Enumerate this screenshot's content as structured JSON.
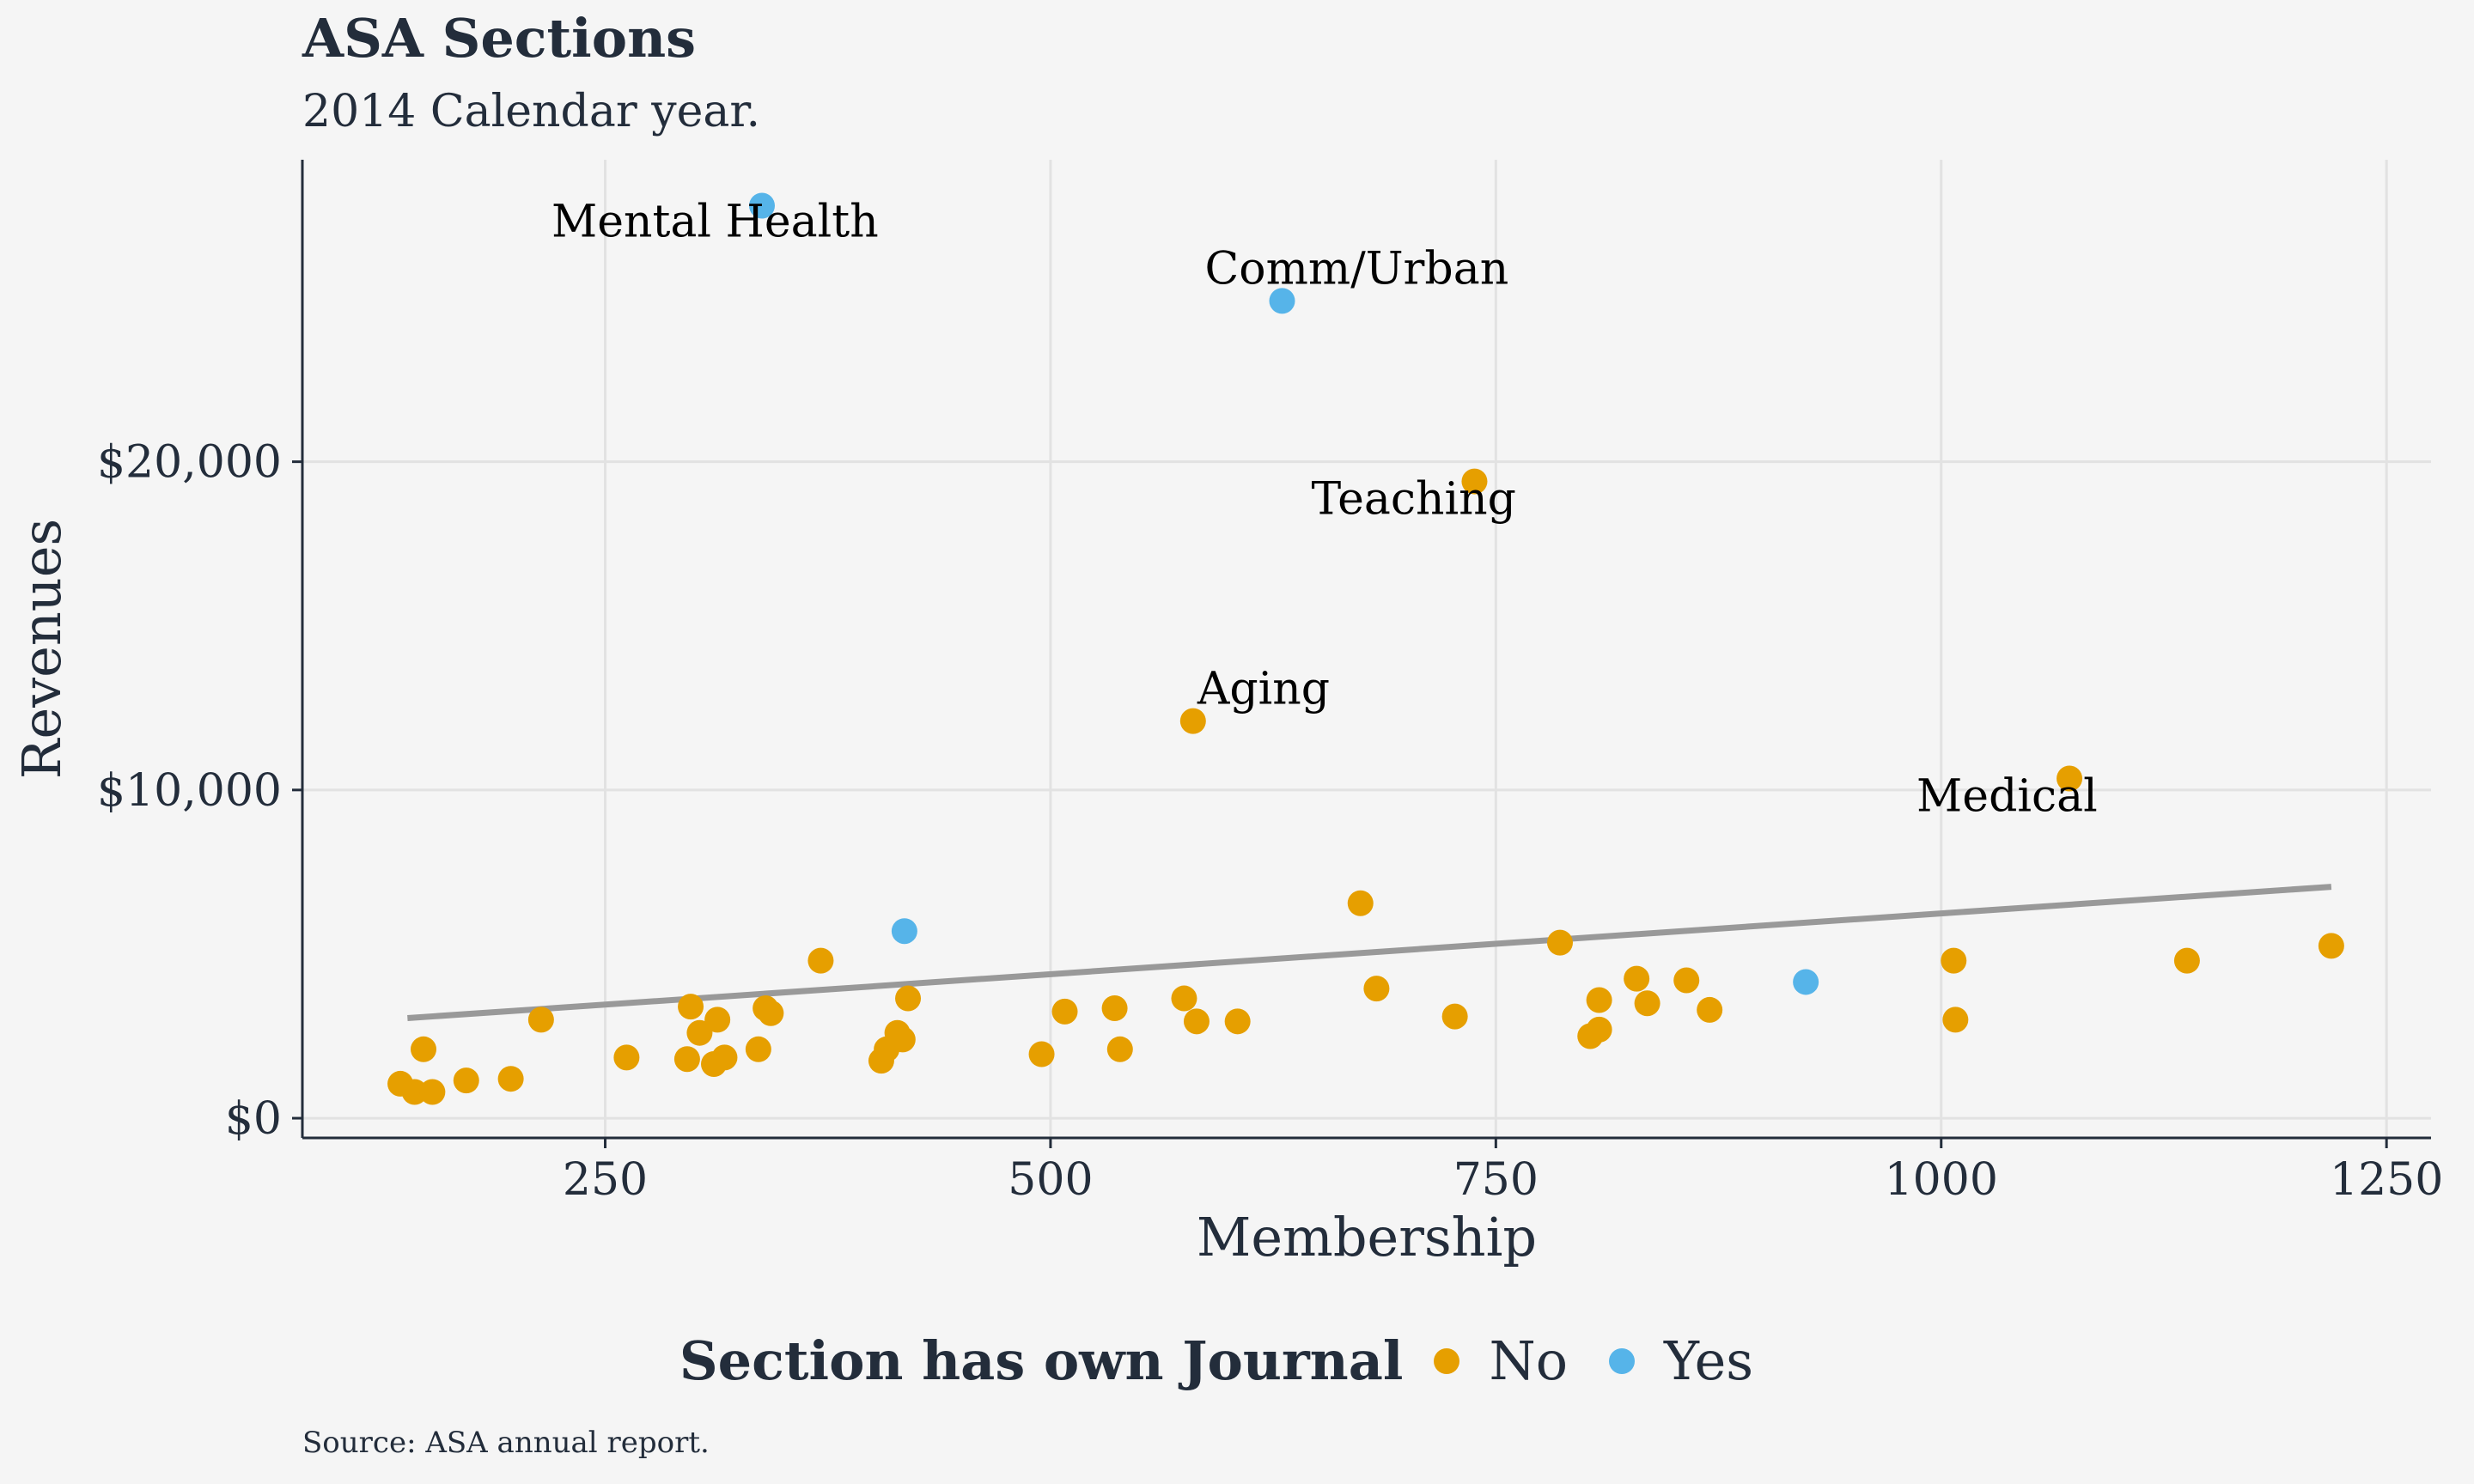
{
  "chart_data": {
    "type": "scatter",
    "title": "ASA Sections",
    "subtitle": "2014 Calendar year.",
    "caption": "Source: ASA annual report.",
    "xlabel": "Membership",
    "ylabel": "Revenues",
    "xlim": [
      80,
      1275
    ],
    "ylim": [
      -600,
      29200
    ],
    "x_ticks": [
      250,
      500,
      750,
      1000,
      1250
    ],
    "x_tick_labels": [
      "250",
      "500",
      "750",
      "1000",
      "1250"
    ],
    "y_ticks": [
      0,
      10000,
      20000
    ],
    "y_tick_labels": [
      "$0",
      "$10,000",
      "$20,000"
    ],
    "grid": true,
    "legend": {
      "title": "Section has own Journal",
      "position": "bottom",
      "entries": [
        {
          "label": "No",
          "color": "#E69F00"
        },
        {
          "label": "Yes",
          "color": "#56B4E9"
        }
      ]
    },
    "trend_line": {
      "color": "#999999",
      "x": [
        139,
        1219
      ],
      "y": [
        3050,
        7050
      ]
    },
    "series": [
      {
        "name": "No",
        "color": "#E69F00",
        "points": [
          [
            135,
            1050
          ],
          [
            143,
            800
          ],
          [
            148,
            2100
          ],
          [
            153,
            800
          ],
          [
            172,
            1150
          ],
          [
            197,
            1200
          ],
          [
            214,
            3000
          ],
          [
            262,
            1850
          ],
          [
            296,
            1800
          ],
          [
            298,
            3400
          ],
          [
            303,
            2600
          ],
          [
            311,
            1650
          ],
          [
            313,
            3000
          ],
          [
            317,
            1850
          ],
          [
            336,
            2100
          ],
          [
            340,
            3350
          ],
          [
            343,
            3200
          ],
          [
            371,
            4800
          ],
          [
            405,
            1750
          ],
          [
            408,
            2100
          ],
          [
            414,
            2600
          ],
          [
            417,
            2400
          ],
          [
            420,
            3650
          ],
          [
            495,
            1950
          ],
          [
            508,
            3250
          ],
          [
            536,
            3350
          ],
          [
            539,
            2100
          ],
          [
            575,
            3650
          ],
          [
            580,
            12100
          ],
          [
            582,
            2950
          ],
          [
            605,
            2950
          ],
          [
            674,
            6550
          ],
          [
            683,
            3950
          ],
          [
            727,
            3100
          ],
          [
            738,
            19400
          ],
          [
            786,
            5350
          ],
          [
            803,
            2500
          ],
          [
            808,
            2700
          ],
          [
            808,
            3600
          ],
          [
            829,
            4250
          ],
          [
            835,
            3500
          ],
          [
            857,
            4200
          ],
          [
            870,
            3300
          ],
          [
            1007,
            4800
          ],
          [
            1008,
            3000
          ],
          [
            1072,
            10350
          ],
          [
            1138,
            4800
          ],
          [
            1219,
            5250
          ]
        ]
      },
      {
        "name": "Yes",
        "color": "#56B4E9",
        "points": [
          [
            338,
            27800
          ],
          [
            418,
            5700
          ],
          [
            630,
            24900
          ],
          [
            924,
            4150
          ]
        ]
      }
    ],
    "annotations": [
      {
        "text": "Mental Health",
        "x": 338,
        "y": 27800,
        "dx": -245,
        "dy": 36
      },
      {
        "text": "Comm/Urban",
        "x": 630,
        "y": 24900,
        "dx": -90,
        "dy": -20
      },
      {
        "text": "Teaching",
        "x": 738,
        "y": 19400,
        "dx": -190,
        "dy": 38
      },
      {
        "text": "Aging",
        "x": 580,
        "y": 12100,
        "dx": 5,
        "dy": -20
      },
      {
        "text": "Medical",
        "x": 1072,
        "y": 10350,
        "dx": -178,
        "dy": 38
      }
    ]
  }
}
